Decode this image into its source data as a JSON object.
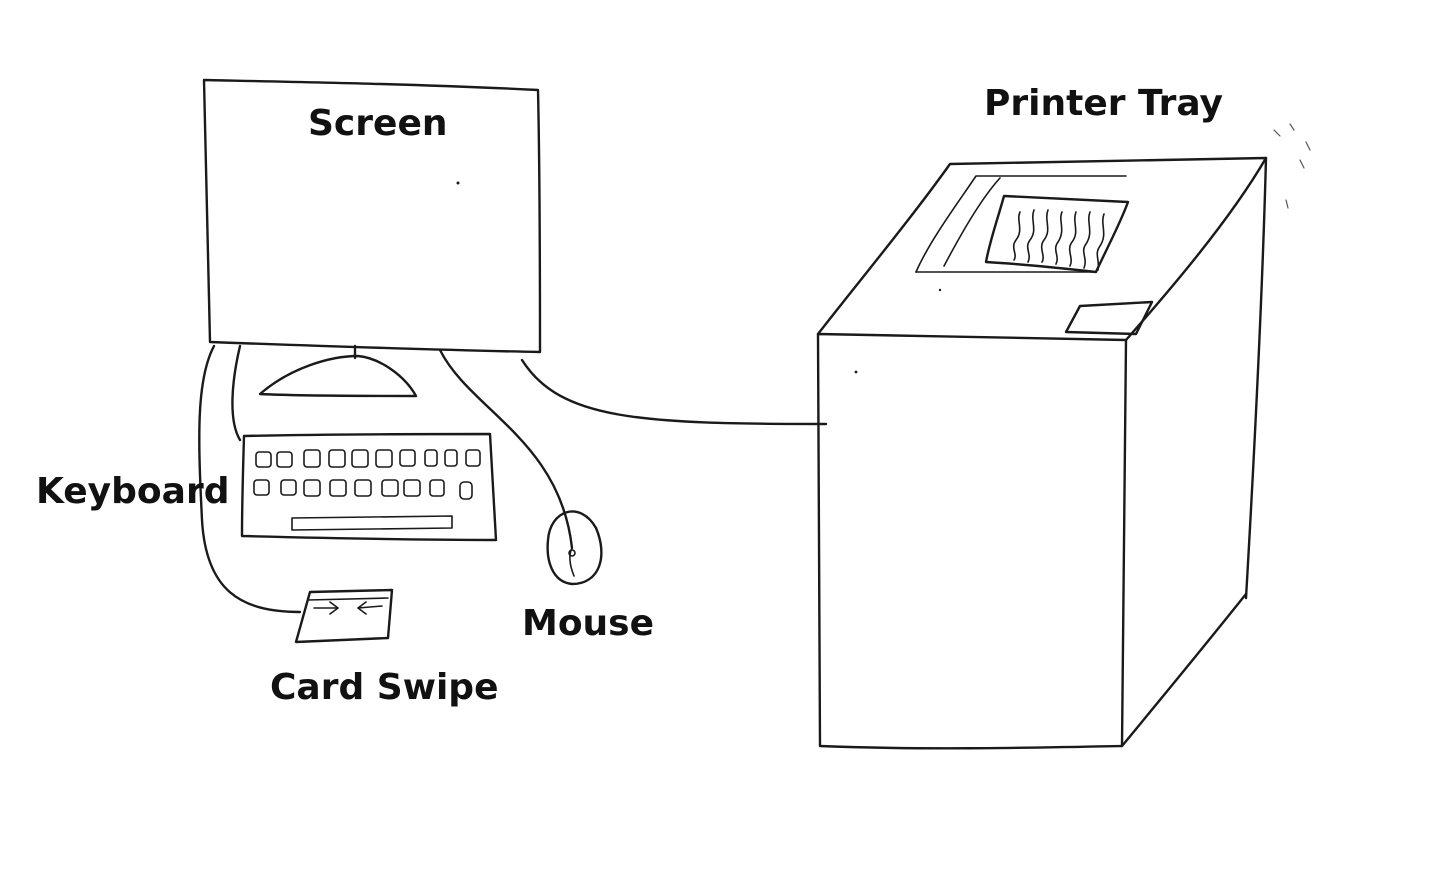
{
  "labels": {
    "screen": "Screen",
    "printer_tray": "Printer Tray",
    "keyboard": "Keyboard",
    "mouse": "Mouse",
    "card_swipe": "Card Swipe"
  },
  "colors": {
    "ink": "#1a1a1a",
    "background": "#ffffff"
  }
}
